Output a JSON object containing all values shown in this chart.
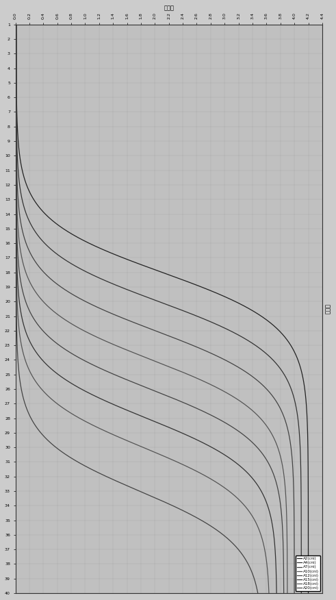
{
  "title": "",
  "xlabel": "荧光值",
  "ylabel": "循环数",
  "x_min": 0,
  "x_max": 4.4,
  "y_min": 1,
  "y_max": 40,
  "x_ticks": [
    0.0,
    0.2,
    0.4,
    0.6,
    0.8,
    1.0,
    1.2,
    1.4,
    1.6,
    1.8,
    2.0,
    2.2,
    2.4,
    2.6,
    2.8,
    3.0,
    3.2,
    3.4,
    3.6,
    3.8,
    4.0,
    4.2,
    4.4
  ],
  "y_ticks": [
    1,
    2,
    3,
    4,
    5,
    6,
    7,
    8,
    9,
    10,
    11,
    12,
    13,
    14,
    15,
    16,
    17,
    18,
    19,
    20,
    21,
    22,
    23,
    24,
    25,
    26,
    27,
    28,
    29,
    30,
    31,
    32,
    33,
    34,
    35,
    36,
    37,
    38,
    39,
    40
  ],
  "series": [
    {
      "label": "A2(cni)",
      "Ct": 18,
      "max": 4.2
    },
    {
      "label": "A4(cni)",
      "Ct": 20,
      "max": 4.1
    },
    {
      "label": "A7(cni)",
      "Ct": 22,
      "max": 4.0
    },
    {
      "label": "A10(cni)",
      "Ct": 24,
      "max": 3.9
    },
    {
      "label": "A12(cni)",
      "Ct": 26,
      "max": 3.85
    },
    {
      "label": "A15(cni)",
      "Ct": 28,
      "max": 3.75
    },
    {
      "label": "A18(cni)",
      "Ct": 30,
      "max": 3.65
    },
    {
      "label": "A20(cni)",
      "Ct": 33,
      "max": 3.55
    }
  ],
  "line_color": "#555555",
  "background_color": "#cccccc",
  "plot_bg_color": "#c0c0c0",
  "grid_color": "#999999",
  "ylabel_label": "循环数",
  "xlabel_label": "荧光值"
}
